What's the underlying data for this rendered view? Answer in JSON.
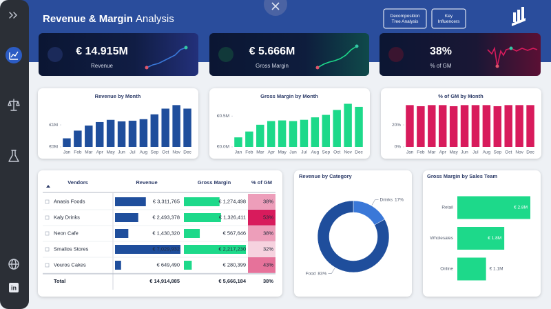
{
  "header": {
    "title": [
      "Revenue & Margin",
      "Analysis"
    ],
    "buttons": [
      [
        "Decomposition",
        "Tree Analysis"
      ],
      [
        "Key",
        "Influencers"
      ]
    ]
  },
  "kpis": [
    {
      "value": "€ 14.915M",
      "label": "Revenue"
    },
    {
      "value": "€ 5.666M",
      "label": "Gross Margin"
    },
    {
      "value": "38%",
      "label": "% of GM"
    }
  ],
  "chart_data": [
    {
      "type": "bar",
      "title": "Revenue by Month",
      "categories": [
        "Jan",
        "Feb",
        "Mar",
        "Apr",
        "May",
        "Jun",
        "Jul",
        "Aug",
        "Sep",
        "Oct",
        "Nov",
        "Dec"
      ],
      "values": [
        0.39,
        0.74,
        0.97,
        1.13,
        1.23,
        1.16,
        1.19,
        1.26,
        1.48,
        1.74,
        1.9,
        1.74
      ],
      "color": "#1f4e9c",
      "ylim": [
        0,
        2.1
      ],
      "yticks": [
        {
          "value": 0,
          "label": "€0M"
        },
        {
          "value": 1,
          "label": "€1M"
        }
      ]
    },
    {
      "type": "bar",
      "title": "Gross Margin by Month",
      "categories": [
        "Jan",
        "Feb",
        "Mar",
        "Apr",
        "May",
        "Jun",
        "Jul",
        "Aug",
        "Sep",
        "Oct",
        "Nov",
        "Dec"
      ],
      "values": [
        0.155,
        0.25,
        0.36,
        0.42,
        0.43,
        0.42,
        0.44,
        0.48,
        0.52,
        0.6,
        0.7,
        0.65
      ],
      "color": "#1dd98a",
      "ylim": [
        0,
        0.75
      ],
      "yticks": [
        {
          "value": 0,
          "label": "€0.0M"
        },
        {
          "value": 0.5,
          "label": "€0.5M"
        }
      ]
    },
    {
      "type": "bar",
      "title": "% of GM by Month",
      "categories": [
        "Jan",
        "Feb",
        "Mar",
        "Apr",
        "May",
        "Jun",
        "Jul",
        "Aug",
        "Sep",
        "Oct",
        "Nov",
        "Dec"
      ],
      "values": [
        38,
        37,
        38,
        38,
        37,
        38,
        38,
        38,
        37,
        38,
        38,
        38
      ],
      "color": "#d81b5c",
      "ylim": [
        0,
        42
      ],
      "yticks": [
        {
          "value": 0,
          "label": "0%"
        },
        {
          "value": 20,
          "label": "20%"
        }
      ]
    },
    {
      "type": "donut",
      "title": "Revenue by Category",
      "categories": [
        "Drinks",
        "Food"
      ],
      "values": [
        17,
        83
      ],
      "value_labels": [
        "17%",
        "83%"
      ],
      "colors": [
        "#3a78d8",
        "#1f4e9c"
      ]
    },
    {
      "type": "hbar",
      "title": "Gross Margin by Sales Team",
      "categories": [
        "Retail",
        "Wholesales",
        "Online"
      ],
      "values": [
        2.8,
        1.8,
        1.1
      ],
      "value_labels": [
        "€ 2.8M",
        "€ 1.8M",
        "€ 1.1M"
      ],
      "color": "#1dd98a",
      "xlim": [
        0,
        2.8
      ]
    }
  ],
  "table": {
    "columns": [
      "Vendors",
      "Revenue",
      "Gross Margin",
      "% of GM"
    ],
    "revenue_color": "#1f4e9c",
    "margin_color": "#1dd98a",
    "rows": [
      [
        "Anasis Foods",
        {
          "value": 3311765,
          "label": "€ 3,311,765"
        },
        {
          "value": 1274498,
          "label": "€ 1,274,498"
        },
        {
          "value": 38,
          "label": "38%"
        }
      ],
      [
        "Kaly Drinks",
        {
          "value": 2493378,
          "label": "€ 2,493,378"
        },
        {
          "value": 1326411,
          "label": "€ 1,326,411"
        },
        {
          "value": 53,
          "label": "53%"
        }
      ],
      [
        "Neon Cafe",
        {
          "value": 1430320,
          "label": "€ 1,430,320"
        },
        {
          "value": 567646,
          "label": "€ 567,646"
        },
        {
          "value": 38,
          "label": "38%"
        }
      ],
      [
        "Smalios Stores",
        {
          "value": 7029932,
          "label": "€ 7,029,932"
        },
        {
          "value": 2217230,
          "label": "€ 2,217,230"
        },
        {
          "value": 32,
          "label": "32%"
        }
      ],
      [
        "Vouros Cakes",
        {
          "value": 649490,
          "label": "€ 649,490"
        },
        {
          "value": 280399,
          "label": "€ 280,399"
        },
        {
          "value": 43,
          "label": "43%"
        }
      ]
    ],
    "total": [
      "Total",
      "€ 14,914,885",
      "€ 5,666,184",
      "38%"
    ]
  }
}
